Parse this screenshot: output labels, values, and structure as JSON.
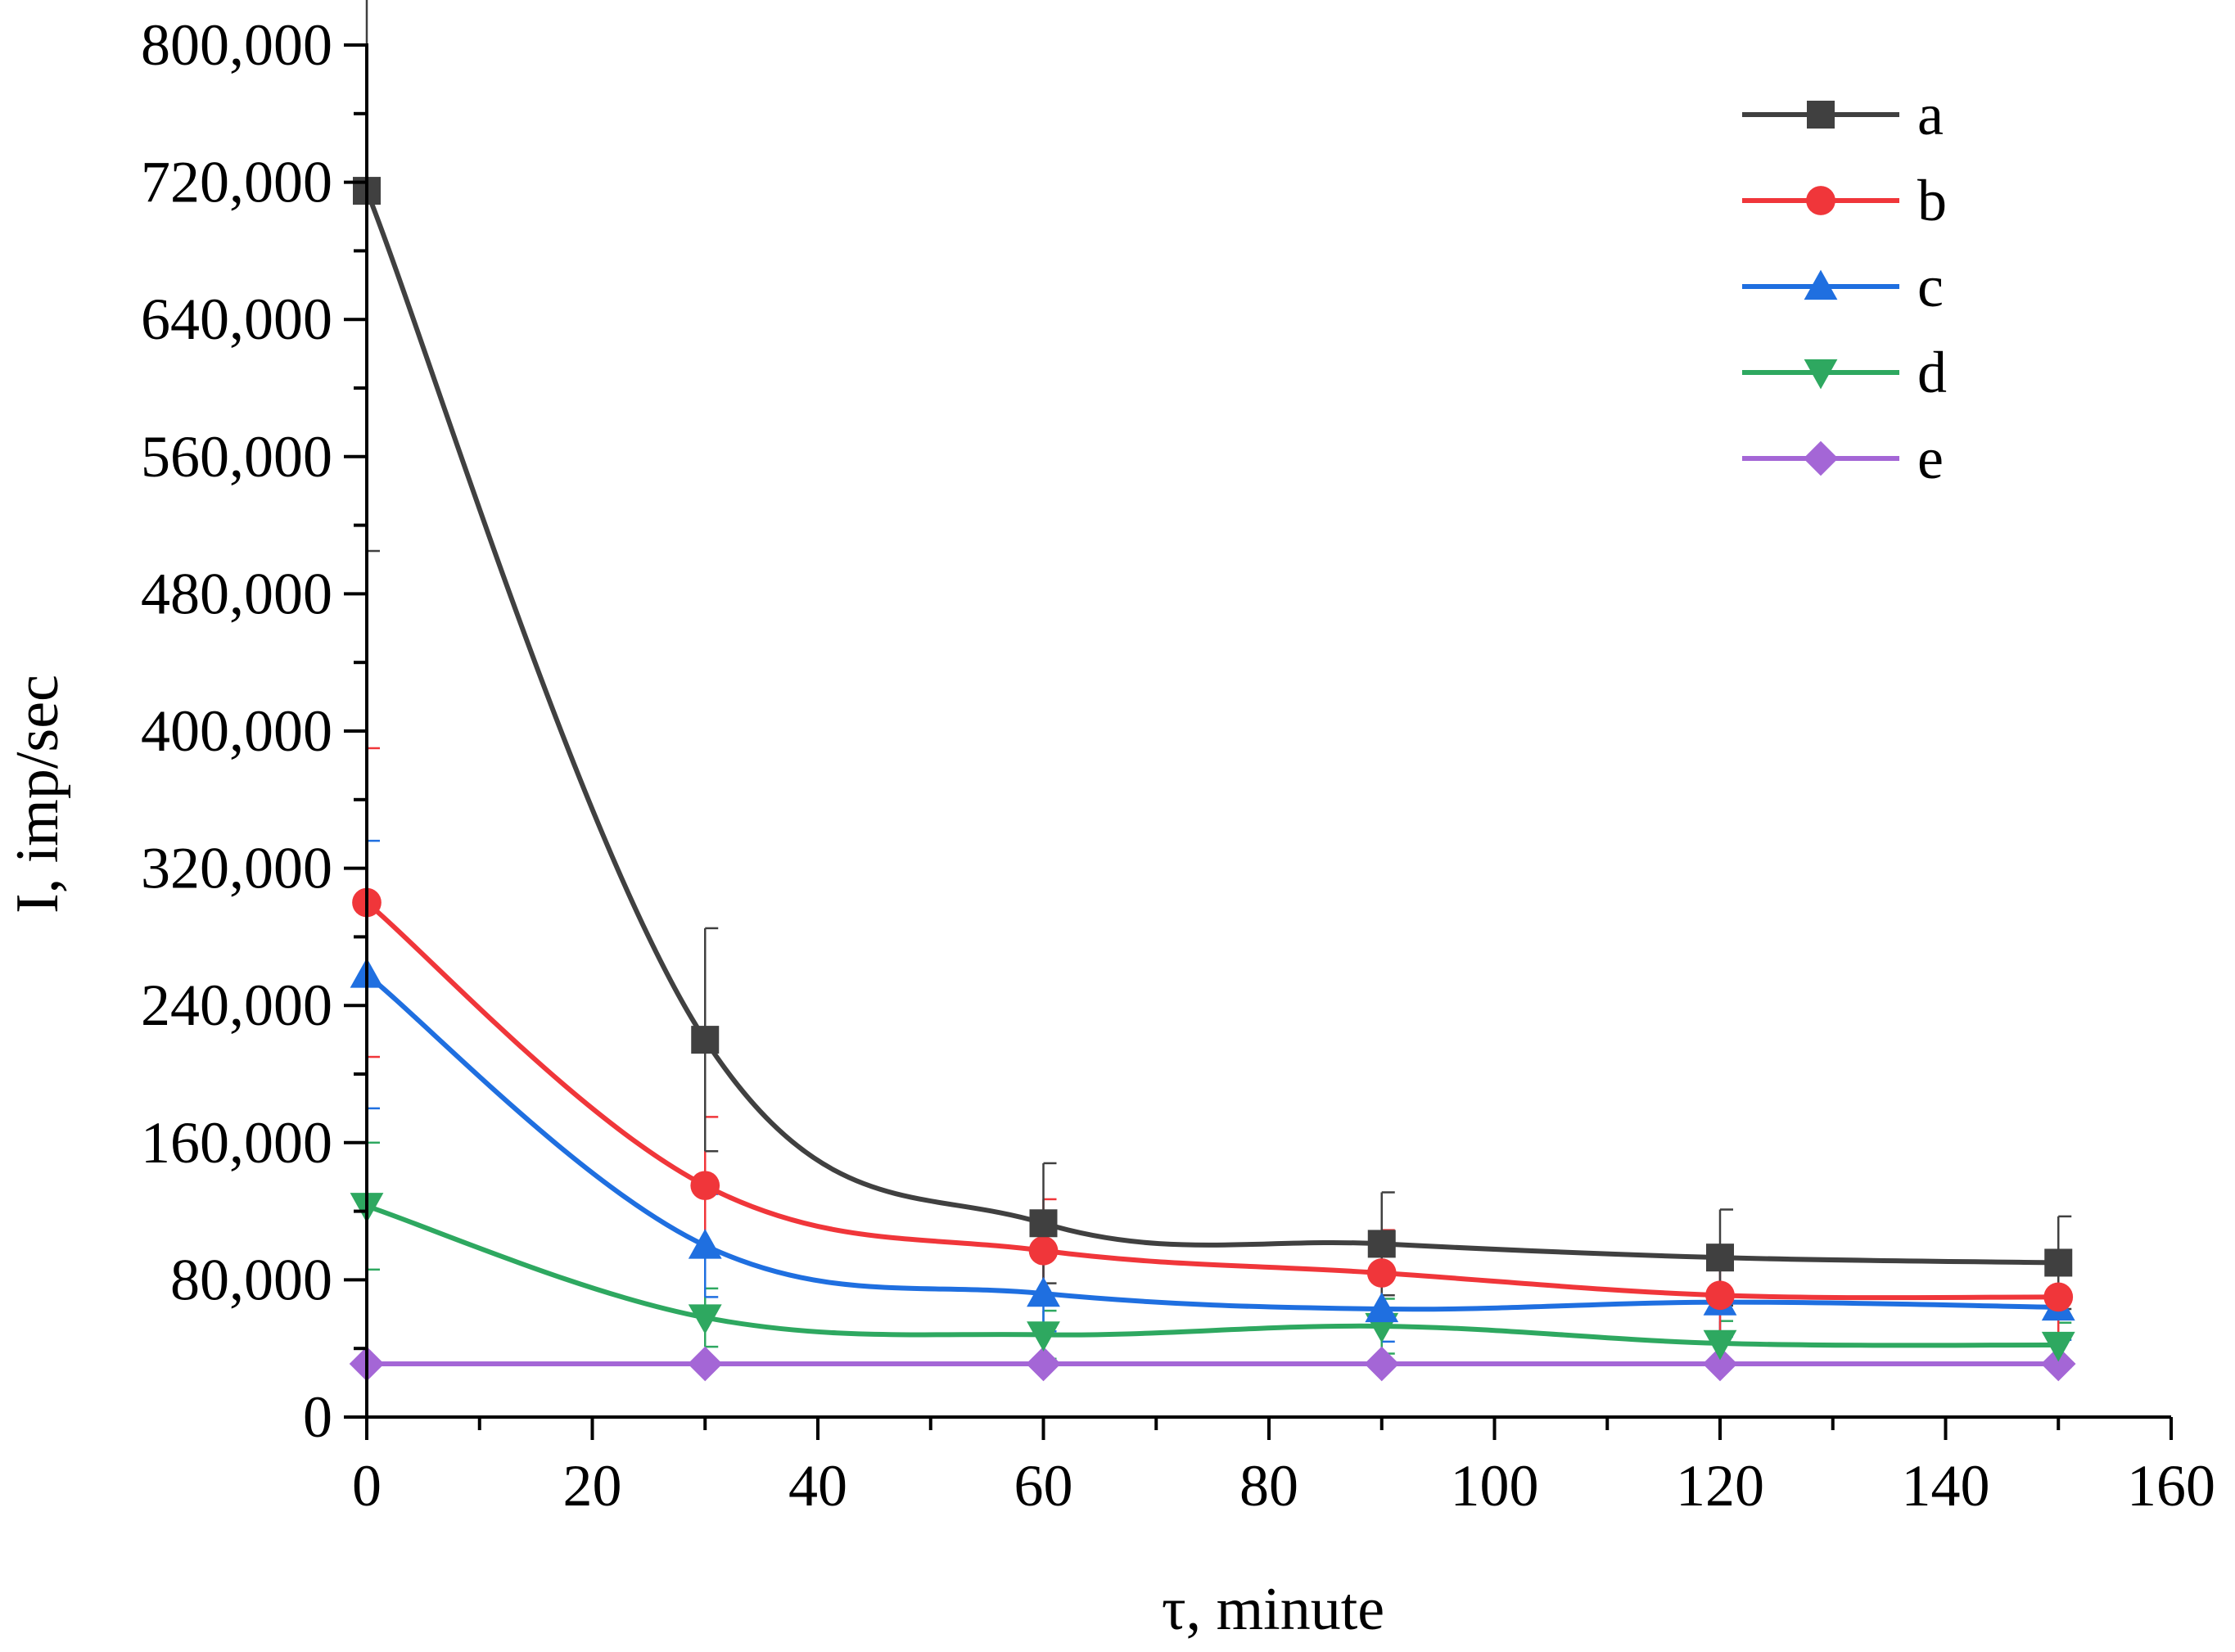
{
  "chart_data": {
    "type": "line",
    "title": "",
    "xlabel": "τ, minute",
    "ylabel": "I, imp/sec",
    "xlim": [
      0,
      160
    ],
    "ylim": [
      0,
      800000
    ],
    "x_ticks": [
      0,
      20,
      40,
      60,
      80,
      100,
      120,
      140,
      160
    ],
    "x_tick_labels": [
      "0",
      "20",
      "40",
      "60",
      "80",
      "100",
      "120",
      "140",
      "160"
    ],
    "y_ticks": [
      0,
      80000,
      160000,
      240000,
      320000,
      400000,
      480000,
      560000,
      640000,
      720000,
      800000
    ],
    "y_tick_labels": [
      "0",
      "80,000",
      "160,000",
      "240,000",
      "320,000",
      "400,000",
      "480,000",
      "560,000",
      "640,000",
      "720,000",
      "800,000"
    ],
    "grid": false,
    "legend_position": "top-right",
    "x": [
      0,
      30,
      60,
      90,
      120,
      150
    ],
    "series": [
      {
        "name": "a",
        "color": "#404040",
        "marker": "square",
        "values": [
          715000,
          220000,
          113000,
          101000,
          93000,
          90000
        ],
        "error": [
          210000,
          65000,
          35000,
          30000,
          28000,
          27000
        ]
      },
      {
        "name": "b",
        "color": "#f0363a",
        "marker": "circle",
        "values": [
          300000,
          135000,
          97000,
          84000,
          71000,
          70000
        ],
        "error": [
          90000,
          40000,
          30000,
          25000,
          21000,
          21000
        ]
      },
      {
        "name": "c",
        "color": "#1f6fe0",
        "marker": "triangle-up",
        "values": [
          258000,
          100000,
          72000,
          63000,
          67000,
          64000
        ],
        "error": [
          78000,
          30000,
          22000,
          19000,
          20000,
          19000
        ]
      },
      {
        "name": "d",
        "color": "#2ea860",
        "marker": "triangle-down",
        "values": [
          123000,
          58000,
          48000,
          53000,
          43000,
          42000
        ],
        "error": [
          37000,
          17000,
          14000,
          16000,
          13000,
          13000
        ]
      },
      {
        "name": "e",
        "color": "#a466d6",
        "marker": "diamond",
        "values": [
          31000,
          31000,
          31000,
          31000,
          31000,
          31000
        ],
        "error": [
          0,
          0,
          0,
          0,
          0,
          0
        ]
      }
    ]
  }
}
